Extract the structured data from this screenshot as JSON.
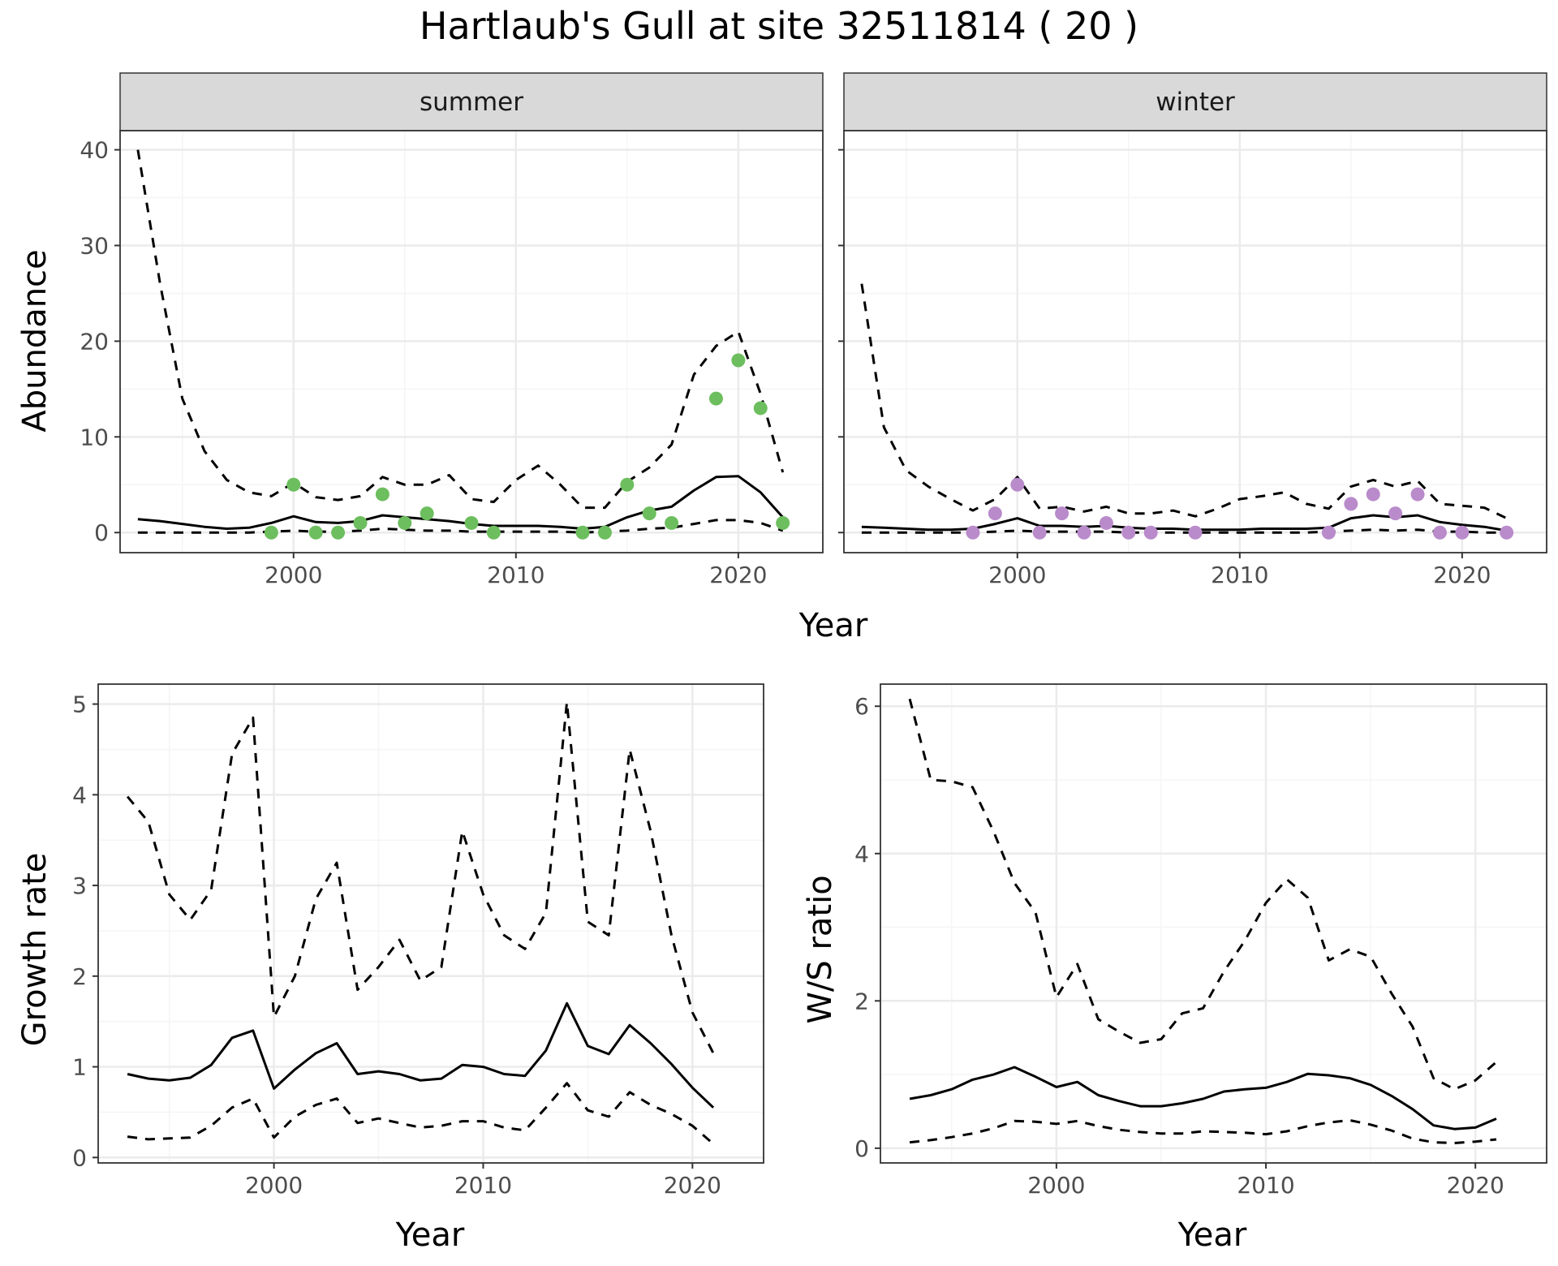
{
  "title": "Hartlaub's Gull at site 32511814 ( 20 )",
  "colors": {
    "summer_points": "#6DBE5E",
    "winter_points": "#B98BCB",
    "lines": "#000000",
    "grid_major": "#EBEBEB",
    "grid_minor": "#F5F5F5",
    "strip_fill": "#D9D9D9"
  },
  "chart_data": [
    {
      "type": "line",
      "facet": "summer",
      "xlabel": "Year",
      "ylabel": "Abundance",
      "xlim": [
        1992.2,
        2023.8
      ],
      "ylim": [
        -2.1,
        42.0
      ],
      "xticks": [
        2000,
        2010,
        2020
      ],
      "yticks": [
        0,
        10,
        20,
        30,
        40
      ],
      "grid": true,
      "series": [
        {
          "style": "solid",
          "x": [
            1993,
            1994,
            1995,
            1996,
            1997,
            1998,
            1999,
            2000,
            2001,
            2002,
            2003,
            2004,
            2005,
            2006,
            2007,
            2008,
            2009,
            2010,
            2011,
            2012,
            2013,
            2014,
            2015,
            2016,
            2017,
            2018,
            2019,
            2020,
            2021,
            2022
          ],
          "values": [
            1.4,
            1.2,
            0.9,
            0.6,
            0.4,
            0.5,
            1.0,
            1.7,
            1.1,
            1.0,
            1.2,
            1.8,
            1.6,
            1.4,
            1.2,
            0.9,
            0.7,
            0.7,
            0.7,
            0.6,
            0.4,
            0.6,
            1.6,
            2.3,
            2.7,
            4.4,
            5.8,
            5.9,
            4.2,
            1.6
          ]
        },
        {
          "style": "dashed",
          "x": [
            1993,
            1994,
            1995,
            1996,
            1997,
            1998,
            1999,
            2000,
            2001,
            2002,
            2003,
            2004,
            2005,
            2006,
            2007,
            2008,
            2009,
            2010,
            2011,
            2012,
            2013,
            2014,
            2015,
            2016,
            2017,
            2018,
            2019,
            2020,
            2021,
            2022
          ],
          "values": [
            40.0,
            26.0,
            14.0,
            8.5,
            5.5,
            4.2,
            3.8,
            5.2,
            3.7,
            3.4,
            3.8,
            5.8,
            5.0,
            5.0,
            6.0,
            3.5,
            3.2,
            5.5,
            7.0,
            5.0,
            2.6,
            2.6,
            5.3,
            6.8,
            9.2,
            16.5,
            19.5,
            21.0,
            14.5,
            6.3
          ]
        },
        {
          "style": "dashed",
          "x": [
            1993,
            1994,
            1995,
            1996,
            1997,
            1998,
            1999,
            2000,
            2001,
            2002,
            2003,
            2004,
            2005,
            2006,
            2007,
            2008,
            2009,
            2010,
            2011,
            2012,
            2013,
            2014,
            2015,
            2016,
            2017,
            2018,
            2019,
            2020,
            2021,
            2022
          ],
          "values": [
            0.0,
            0.0,
            0.0,
            0.0,
            0.0,
            0.0,
            0.1,
            0.2,
            0.1,
            0.1,
            0.2,
            0.4,
            0.3,
            0.2,
            0.2,
            0.1,
            0.1,
            0.1,
            0.1,
            0.1,
            0.0,
            0.1,
            0.2,
            0.4,
            0.5,
            0.9,
            1.3,
            1.3,
            1.0,
            0.2
          ]
        },
        {
          "style": "points",
          "x": [
            1999,
            2000,
            2001,
            2002,
            2003,
            2004,
            2005,
            2006,
            2008,
            2009,
            2013,
            2014,
            2015,
            2016,
            2017,
            2019,
            2020,
            2021,
            2022
          ],
          "values": [
            0,
            5,
            0,
            0,
            1,
            4,
            1,
            2,
            1,
            0,
            0,
            0,
            5,
            2,
            1,
            14,
            18,
            13,
            1
          ]
        }
      ]
    },
    {
      "type": "line",
      "facet": "winter",
      "xlabel": "Year",
      "ylabel": "Abundance",
      "xlim": [
        1992.2,
        2023.8
      ],
      "ylim": [
        -2.1,
        42.0
      ],
      "xticks": [
        2000,
        2010,
        2020
      ],
      "yticks": [
        0,
        10,
        20,
        30,
        40
      ],
      "grid": true,
      "series": [
        {
          "style": "solid",
          "x": [
            1993,
            1994,
            1995,
            1996,
            1997,
            1998,
            1999,
            2000,
            2001,
            2002,
            2003,
            2004,
            2005,
            2006,
            2007,
            2008,
            2009,
            2010,
            2011,
            2012,
            2013,
            2014,
            2015,
            2016,
            2017,
            2018,
            2019,
            2020,
            2021,
            2022
          ],
          "values": [
            0.6,
            0.5,
            0.4,
            0.3,
            0.3,
            0.4,
            0.9,
            1.5,
            0.7,
            0.7,
            0.6,
            0.7,
            0.5,
            0.4,
            0.4,
            0.3,
            0.3,
            0.3,
            0.4,
            0.4,
            0.4,
            0.5,
            1.5,
            1.8,
            1.6,
            1.8,
            1.1,
            0.8,
            0.6,
            0.2
          ]
        },
        {
          "style": "dashed",
          "x": [
            1993,
            1994,
            1995,
            1996,
            1997,
            1998,
            1999,
            2000,
            2001,
            2002,
            2003,
            2004,
            2005,
            2006,
            2007,
            2008,
            2009,
            2010,
            2011,
            2012,
            2013,
            2014,
            2015,
            2016,
            2017,
            2018,
            2019,
            2020,
            2021,
            2022
          ],
          "values": [
            26.0,
            11.0,
            6.5,
            4.8,
            3.5,
            2.3,
            3.5,
            5.8,
            2.5,
            2.7,
            2.2,
            2.7,
            2.0,
            2.0,
            2.3,
            1.7,
            2.5,
            3.5,
            3.8,
            4.2,
            3.0,
            2.5,
            4.8,
            5.5,
            4.8,
            5.4,
            3.0,
            2.8,
            2.6,
            1.5
          ]
        },
        {
          "style": "dashed",
          "x": [
            1993,
            1994,
            1995,
            1996,
            1997,
            1998,
            1999,
            2000,
            2001,
            2002,
            2003,
            2004,
            2005,
            2006,
            2007,
            2008,
            2009,
            2010,
            2011,
            2012,
            2013,
            2014,
            2015,
            2016,
            2017,
            2018,
            2019,
            2020,
            2021,
            2022
          ],
          "values": [
            0.0,
            0.0,
            0.0,
            0.0,
            0.0,
            0.0,
            0.1,
            0.2,
            0.1,
            0.1,
            0.1,
            0.1,
            0.0,
            0.0,
            0.0,
            0.0,
            0.0,
            0.0,
            0.0,
            0.0,
            0.0,
            0.1,
            0.2,
            0.3,
            0.2,
            0.3,
            0.1,
            0.1,
            0.0,
            0.0
          ]
        },
        {
          "style": "points",
          "x": [
            1998,
            1999,
            2000,
            2001,
            2002,
            2003,
            2004,
            2005,
            2006,
            2008,
            2014,
            2015,
            2016,
            2017,
            2018,
            2019,
            2020,
            2022
          ],
          "values": [
            0,
            2,
            5,
            0,
            2,
            0,
            1,
            0,
            0,
            0,
            0,
            3,
            4,
            2,
            4,
            0,
            0,
            0
          ]
        }
      ]
    },
    {
      "type": "line",
      "xlabel": "Year",
      "ylabel": "Growth rate",
      "xlim": [
        1991.6,
        2023.4
      ],
      "ylim": [
        -0.06,
        5.22
      ],
      "xticks": [
        2000,
        2010,
        2020
      ],
      "yticks": [
        0,
        1,
        2,
        3,
        4,
        5
      ],
      "grid": true,
      "series": [
        {
          "style": "solid",
          "x": [
            1993,
            1994,
            1995,
            1996,
            1997,
            1998,
            1999,
            2000,
            2001,
            2002,
            2003,
            2004,
            2005,
            2006,
            2007,
            2008,
            2009,
            2010,
            2011,
            2012,
            2013,
            2014,
            2015,
            2016,
            2017,
            2018,
            2019,
            2020,
            2021
          ],
          "values": [
            0.92,
            0.87,
            0.85,
            0.88,
            1.02,
            1.32,
            1.4,
            0.76,
            0.97,
            1.15,
            1.26,
            0.92,
            0.95,
            0.92,
            0.85,
            0.87,
            1.02,
            1.0,
            0.92,
            0.9,
            1.18,
            1.7,
            1.23,
            1.14,
            1.46,
            1.26,
            1.03,
            0.77,
            0.55
          ]
        },
        {
          "style": "dashed",
          "x": [
            1993,
            1994,
            1995,
            1996,
            1997,
            1998,
            1999,
            2000,
            2001,
            2002,
            2003,
            2004,
            2005,
            2006,
            2007,
            2008,
            2009,
            2010,
            2011,
            2012,
            2013,
            2014,
            2015,
            2016,
            2017,
            2018,
            2019,
            2020,
            2021
          ],
          "values": [
            3.98,
            3.7,
            2.9,
            2.62,
            2.95,
            4.45,
            4.85,
            1.55,
            2.0,
            2.85,
            3.25,
            1.85,
            2.1,
            2.4,
            1.95,
            2.1,
            3.6,
            2.9,
            2.45,
            2.3,
            2.7,
            5.02,
            2.6,
            2.45,
            4.5,
            3.6,
            2.45,
            1.6,
            1.15
          ]
        },
        {
          "style": "dashed",
          "x": [
            1993,
            1994,
            1995,
            1996,
            1997,
            1998,
            1999,
            2000,
            2001,
            2002,
            2003,
            2004,
            2005,
            2006,
            2007,
            2008,
            2009,
            2010,
            2011,
            2012,
            2013,
            2014,
            2015,
            2016,
            2017,
            2018,
            2019,
            2020,
            2021
          ],
          "values": [
            0.23,
            0.2,
            0.21,
            0.22,
            0.35,
            0.55,
            0.65,
            0.22,
            0.45,
            0.58,
            0.65,
            0.38,
            0.43,
            0.38,
            0.33,
            0.35,
            0.4,
            0.4,
            0.33,
            0.3,
            0.55,
            0.82,
            0.52,
            0.45,
            0.72,
            0.58,
            0.48,
            0.35,
            0.15
          ]
        }
      ]
    },
    {
      "type": "line",
      "xlabel": "Year",
      "ylabel": "W/S ratio",
      "xlim": [
        1991.6,
        2023.4
      ],
      "ylim": [
        -0.2,
        6.3
      ],
      "xticks": [
        2000,
        2010,
        2020
      ],
      "yticks": [
        0,
        2,
        4,
        6
      ],
      "grid": true,
      "series": [
        {
          "style": "solid",
          "x": [
            1993,
            1994,
            1995,
            1996,
            1997,
            1998,
            1999,
            2000,
            2001,
            2002,
            2003,
            2004,
            2005,
            2006,
            2007,
            2008,
            2009,
            2010,
            2011,
            2012,
            2013,
            2014,
            2015,
            2016,
            2017,
            2018,
            2019,
            2020,
            2021
          ],
          "values": [
            0.67,
            0.72,
            0.8,
            0.93,
            1.0,
            1.1,
            0.97,
            0.83,
            0.9,
            0.72,
            0.64,
            0.57,
            0.57,
            0.61,
            0.67,
            0.77,
            0.8,
            0.82,
            0.9,
            1.01,
            0.99,
            0.95,
            0.86,
            0.71,
            0.53,
            0.31,
            0.26,
            0.28,
            0.4
          ]
        },
        {
          "style": "dashed",
          "x": [
            1993,
            1994,
            1995,
            1996,
            1997,
            1998,
            1999,
            2000,
            2001,
            2002,
            2003,
            2004,
            2005,
            2006,
            2007,
            2008,
            2009,
            2010,
            2011,
            2012,
            2013,
            2014,
            2015,
            2016,
            2017,
            2018,
            2019,
            2020,
            2021
          ],
          "values": [
            6.1,
            5.0,
            4.98,
            4.9,
            4.3,
            3.6,
            3.2,
            2.05,
            2.5,
            1.75,
            1.58,
            1.43,
            1.48,
            1.83,
            1.9,
            2.4,
            2.82,
            3.33,
            3.65,
            3.4,
            2.55,
            2.7,
            2.6,
            2.1,
            1.65,
            0.95,
            0.8,
            0.92,
            1.17
          ]
        },
        {
          "style": "dashed",
          "x": [
            1993,
            1994,
            1995,
            1996,
            1997,
            1998,
            1999,
            2000,
            2001,
            2002,
            2003,
            2004,
            2005,
            2006,
            2007,
            2008,
            2009,
            2010,
            2011,
            2012,
            2013,
            2014,
            2015,
            2016,
            2017,
            2018,
            2019,
            2020,
            2021
          ],
          "values": [
            0.08,
            0.11,
            0.15,
            0.2,
            0.27,
            0.37,
            0.36,
            0.33,
            0.37,
            0.3,
            0.25,
            0.22,
            0.2,
            0.2,
            0.23,
            0.22,
            0.21,
            0.19,
            0.23,
            0.3,
            0.35,
            0.38,
            0.32,
            0.24,
            0.13,
            0.08,
            0.07,
            0.09,
            0.12
          ]
        }
      ]
    }
  ],
  "facets": {
    "summer": "summer",
    "winter": "winter"
  }
}
